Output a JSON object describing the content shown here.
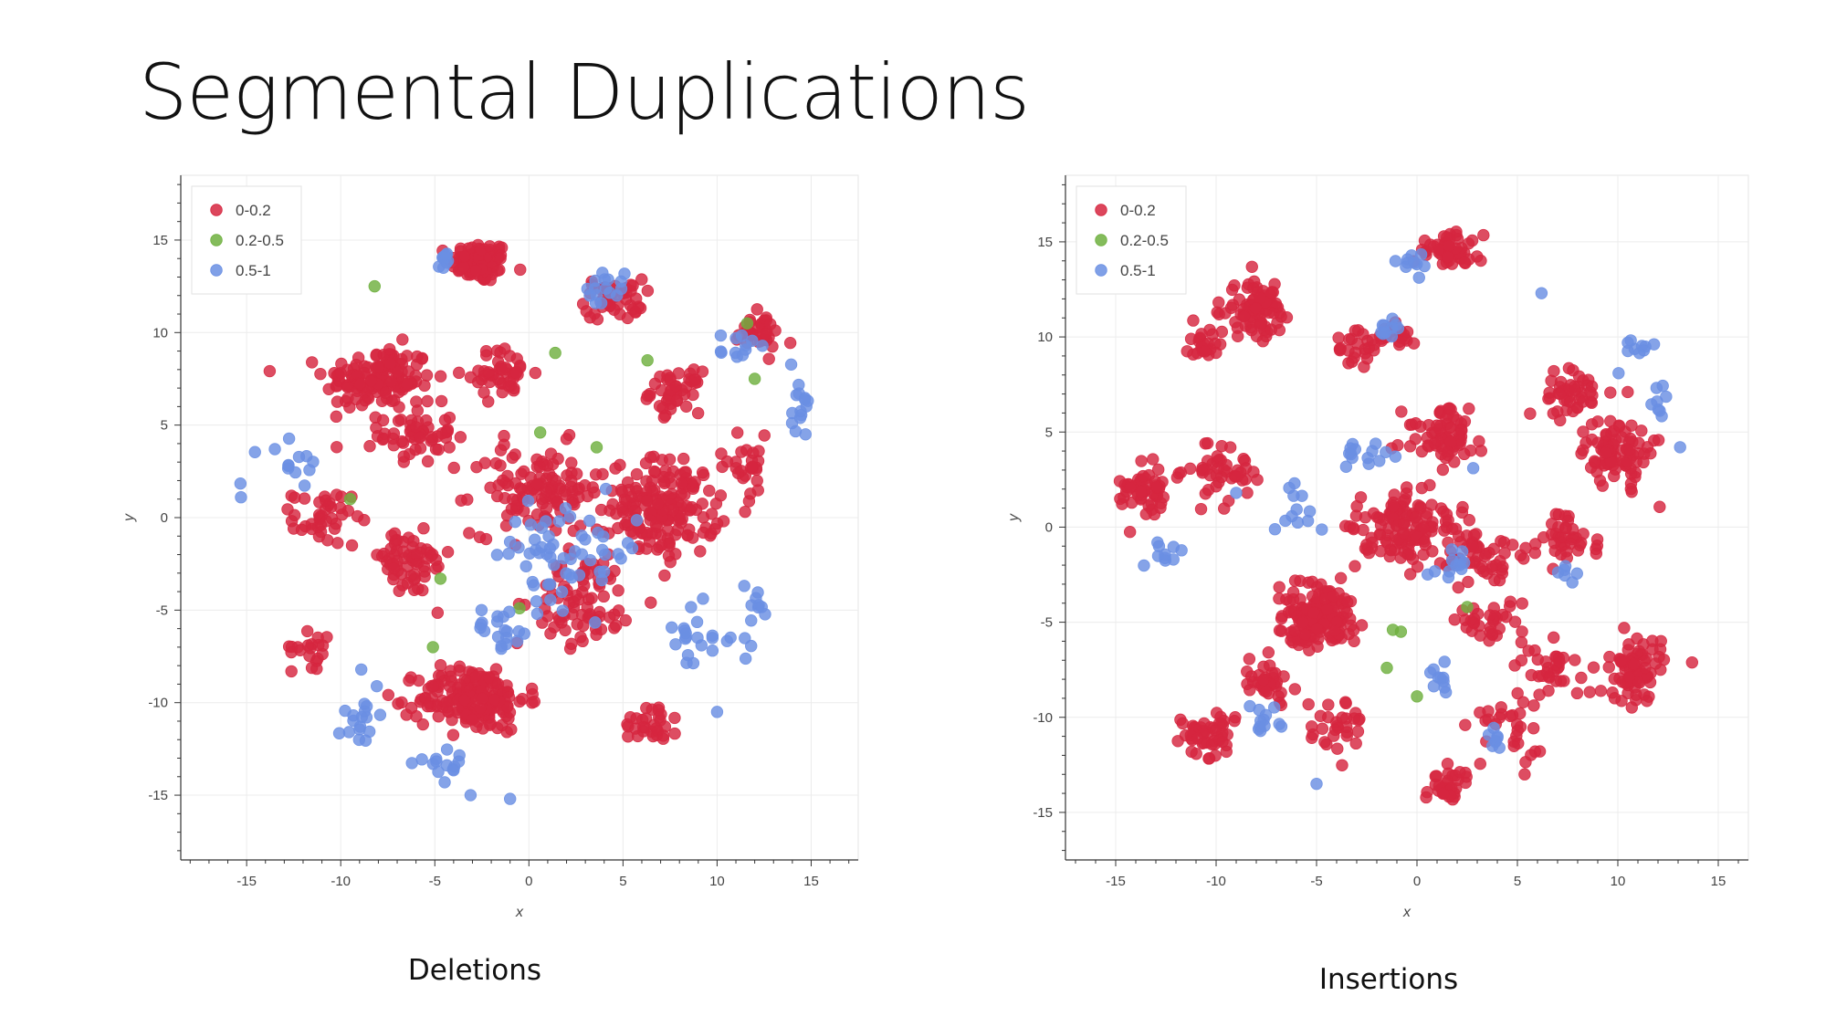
{
  "slide": {
    "title": "Segmental Duplications"
  },
  "colors": {
    "0-0.2": "#d6263f",
    "0.2-0.5": "#6fb03f",
    "0.5-1": "#6a8fe3"
  },
  "chart_data": [
    {
      "id": "deletions",
      "type": "scatter",
      "title": "Deletions",
      "xlabel": "x",
      "ylabel": "y",
      "xlim": [
        -18.5,
        17.5
      ],
      "ylim": [
        -18.5,
        18.5
      ],
      "xticks": [
        -15,
        -10,
        -5,
        0,
        5,
        10,
        15
      ],
      "yticks": [
        -15,
        -10,
        -5,
        0,
        5,
        10,
        15
      ],
      "grid": true,
      "legend_position": "top-left",
      "legend": [
        "0-0.2",
        "0.2-0.5",
        "0.5-1"
      ],
      "series": [
        {
          "name": "0-0.2",
          "clusters": [
            {
              "center": [
                -2.6,
                13.8
              ],
              "spread": [
                1.4,
                1.0
              ],
              "count": 90
            },
            {
              "center": [
                -8.0,
                7.5
              ],
              "spread": [
                2.6,
                1.6
              ],
              "count": 140
            },
            {
              "center": [
                -6.0,
                4.5
              ],
              "spread": [
                1.8,
                1.4
              ],
              "count": 55
            },
            {
              "center": [
                -1.5,
                7.8
              ],
              "spread": [
                1.6,
                1.2
              ],
              "count": 45
            },
            {
              "center": [
                4.5,
                11.8
              ],
              "spread": [
                1.4,
                1.0
              ],
              "count": 45
            },
            {
              "center": [
                12.2,
                10.0
              ],
              "spread": [
                1.1,
                0.9
              ],
              "count": 35
            },
            {
              "center": [
                7.8,
                6.8
              ],
              "spread": [
                1.2,
                1.0
              ],
              "count": 45
            },
            {
              "center": [
                7.2,
                0.5
              ],
              "spread": [
                2.6,
                2.4
              ],
              "count": 180
            },
            {
              "center": [
                -11.0,
                0.0
              ],
              "spread": [
                1.4,
                1.3
              ],
              "count": 40
            },
            {
              "center": [
                -6.5,
                -2.5
              ],
              "spread": [
                2.2,
                1.6
              ],
              "count": 65
            },
            {
              "center": [
                0.5,
                1.5
              ],
              "spread": [
                3.2,
                2.2
              ],
              "count": 120
            },
            {
              "center": [
                -3.0,
                -9.8
              ],
              "spread": [
                2.6,
                1.6
              ],
              "count": 190
            },
            {
              "center": [
                3.0,
                -4.5
              ],
              "spread": [
                2.4,
                2.2
              ],
              "count": 80
            },
            {
              "center": [
                6.5,
                -11.0
              ],
              "spread": [
                1.4,
                1.1
              ],
              "count": 30
            },
            {
              "center": [
                -11.5,
                -7.0
              ],
              "spread": [
                1.0,
                1.0
              ],
              "count": 20
            },
            {
              "center": [
                11.5,
                2.8
              ],
              "spread": [
                1.3,
                1.5
              ],
              "count": 25
            }
          ]
        },
        {
          "name": "0.2-0.5",
          "points": [
            [
              -8.2,
              12.5
            ],
            [
              1.4,
              8.9
            ],
            [
              6.3,
              8.5
            ],
            [
              0.6,
              4.6
            ],
            [
              -9.5,
              1.0
            ],
            [
              -4.7,
              -3.3
            ],
            [
              -0.5,
              -4.9
            ],
            [
              -5.1,
              -7.0
            ],
            [
              3.6,
              3.8
            ],
            [
              11.6,
              10.5
            ],
            [
              12.0,
              7.5
            ]
          ]
        },
        {
          "name": "0.5-1",
          "clusters": [
            {
              "center": [
                -4.5,
                14.0
              ],
              "spread": [
                0.6,
                0.4
              ],
              "count": 12
            },
            {
              "center": [
                4.0,
                12.5
              ],
              "spread": [
                1.0,
                0.8
              ],
              "count": 16
            },
            {
              "center": [
                11.0,
                9.0
              ],
              "spread": [
                0.8,
                1.2
              ],
              "count": 12
            },
            {
              "center": [
                14.5,
                6.5
              ],
              "spread": [
                0.5,
                2.0
              ],
              "count": 14
            },
            {
              "center": [
                -12.5,
                3.0
              ],
              "spread": [
                1.6,
                1.0
              ],
              "count": 12
            },
            {
              "center": [
                2.0,
                -2.0
              ],
              "spread": [
                3.5,
                2.5
              ],
              "count": 60
            },
            {
              "center": [
                9.0,
                -6.5
              ],
              "spread": [
                2.0,
                1.6
              ],
              "count": 22
            },
            {
              "center": [
                -9.0,
                -10.5
              ],
              "spread": [
                1.0,
                1.8
              ],
              "count": 18
            },
            {
              "center": [
                -4.5,
                -13.5
              ],
              "spread": [
                1.4,
                0.7
              ],
              "count": 14
            },
            {
              "center": [
                -1.5,
                -6.0
              ],
              "spread": [
                1.5,
                1.0
              ],
              "count": 18
            },
            {
              "center": [
                12.0,
                -5.0
              ],
              "spread": [
                0.8,
                1.5
              ],
              "count": 10
            }
          ],
          "points": [
            [
              -15.3,
              1.1
            ],
            [
              -13.5,
              3.7
            ],
            [
              -1.0,
              -15.2
            ],
            [
              -3.1,
              -15.0
            ],
            [
              14.7,
              4.5
            ],
            [
              10.0,
              -10.5
            ]
          ]
        }
      ]
    },
    {
      "id": "insertions",
      "type": "scatter",
      "title": "Insertions",
      "xlabel": "x",
      "ylabel": "y",
      "xlim": [
        -17.5,
        16.5
      ],
      "ylim": [
        -17.5,
        18.5
      ],
      "xticks": [
        -15,
        -10,
        -5,
        0,
        5,
        10,
        15
      ],
      "yticks": [
        -15,
        -10,
        -5,
        0,
        5,
        10,
        15
      ],
      "grid": true,
      "legend_position": "top-left",
      "legend": [
        "0-0.2",
        "0.2-0.5",
        "0.5-1"
      ],
      "series": [
        {
          "name": "0-0.2",
          "clusters": [
            {
              "center": [
                1.5,
                14.5
              ],
              "spread": [
                1.5,
                0.8
              ],
              "count": 55
            },
            {
              "center": [
                -8.0,
                11.5
              ],
              "spread": [
                1.5,
                1.3
              ],
              "count": 85
            },
            {
              "center": [
                -10.5,
                9.5
              ],
              "spread": [
                0.9,
                0.8
              ],
              "count": 25
            },
            {
              "center": [
                -3.0,
                9.5
              ],
              "spread": [
                1.3,
                0.8
              ],
              "count": 25
            },
            {
              "center": [
                -1.0,
                10.0
              ],
              "spread": [
                1.0,
                0.6
              ],
              "count": 20
            },
            {
              "center": [
                1.3,
                4.8
              ],
              "spread": [
                1.8,
                1.3
              ],
              "count": 70
            },
            {
              "center": [
                7.5,
                7.0
              ],
              "spread": [
                1.5,
                1.2
              ],
              "count": 45
            },
            {
              "center": [
                10.0,
                4.0
              ],
              "spread": [
                1.4,
                1.6
              ],
              "count": 90
            },
            {
              "center": [
                -13.5,
                1.8
              ],
              "spread": [
                1.2,
                1.3
              ],
              "count": 55
            },
            {
              "center": [
                -9.5,
                3.0
              ],
              "spread": [
                1.6,
                1.3
              ],
              "count": 45
            },
            {
              "center": [
                -0.5,
                0.0
              ],
              "spread": [
                2.2,
                1.8
              ],
              "count": 130
            },
            {
              "center": [
                -5.0,
                -4.8
              ],
              "spread": [
                1.7,
                1.5
              ],
              "count": 170
            },
            {
              "center": [
                3.0,
                -1.5
              ],
              "spread": [
                1.8,
                1.4
              ],
              "count": 50
            },
            {
              "center": [
                7.5,
                -0.5
              ],
              "spread": [
                1.6,
                1.3
              ],
              "count": 40
            },
            {
              "center": [
                11.0,
                -7.5
              ],
              "spread": [
                1.3,
                1.5
              ],
              "count": 80
            },
            {
              "center": [
                6.5,
                -7.5
              ],
              "spread": [
                1.2,
                1.2
              ],
              "count": 30
            },
            {
              "center": [
                -10.5,
                -11.0
              ],
              "spread": [
                1.3,
                1.1
              ],
              "count": 50
            },
            {
              "center": [
                -7.5,
                -8.0
              ],
              "spread": [
                1.2,
                1.0
              ],
              "count": 35
            },
            {
              "center": [
                -4.0,
                -10.5
              ],
              "spread": [
                1.2,
                1.2
              ],
              "count": 30
            },
            {
              "center": [
                1.5,
                -13.5
              ],
              "spread": [
                0.8,
                0.8
              ],
              "count": 35
            },
            {
              "center": [
                4.5,
                -10.5
              ],
              "spread": [
                1.3,
                1.4
              ],
              "count": 30
            },
            {
              "center": [
                4.0,
                -5.0
              ],
              "spread": [
                1.6,
                1.3
              ],
              "count": 35
            }
          ]
        },
        {
          "name": "0.2-0.5",
          "points": [
            [
              2.5,
              -4.2
            ],
            [
              -1.2,
              -5.4
            ],
            [
              -1.5,
              -7.4
            ],
            [
              0,
              -8.9
            ],
            [
              -0.8,
              -5.5
            ]
          ]
        },
        {
          "name": "0.5-1",
          "clusters": [
            {
              "center": [
                -0.5,
                14.0
              ],
              "spread": [
                1.0,
                0.6
              ],
              "count": 10
            },
            {
              "center": [
                -1.5,
                10.5
              ],
              "spread": [
                0.9,
                0.5
              ],
              "count": 10
            },
            {
              "center": [
                10.8,
                9.4
              ],
              "spread": [
                0.7,
                0.8
              ],
              "count": 10
            },
            {
              "center": [
                12.0,
                6.5
              ],
              "spread": [
                0.4,
                1.2
              ],
              "count": 8
            },
            {
              "center": [
                -3.0,
                4.0
              ],
              "spread": [
                1.6,
                1.0
              ],
              "count": 14
            },
            {
              "center": [
                -6.0,
                1.0
              ],
              "spread": [
                1.0,
                1.4
              ],
              "count": 12
            },
            {
              "center": [
                1.5,
                -2.0
              ],
              "spread": [
                1.0,
                1.2
              ],
              "count": 12
            },
            {
              "center": [
                0.8,
                -8.0
              ],
              "spread": [
                0.8,
                1.0
              ],
              "count": 10
            },
            {
              "center": [
                -12.5,
                -1.5
              ],
              "spread": [
                1.0,
                0.8
              ],
              "count": 10
            },
            {
              "center": [
                -8.0,
                -10.0
              ],
              "spread": [
                1.1,
                0.9
              ],
              "count": 12
            },
            {
              "center": [
                4.0,
                -11.0
              ],
              "spread": [
                0.6,
                0.8
              ],
              "count": 8
            },
            {
              "center": [
                7.5,
                -2.5
              ],
              "spread": [
                0.6,
                0.5
              ],
              "count": 6
            }
          ],
          "points": [
            [
              13.1,
              4.2
            ],
            [
              -5.0,
              -13.5
            ],
            [
              6.2,
              12.3
            ],
            [
              2.8,
              3.1
            ],
            [
              -9.0,
              1.8
            ]
          ]
        }
      ]
    }
  ]
}
